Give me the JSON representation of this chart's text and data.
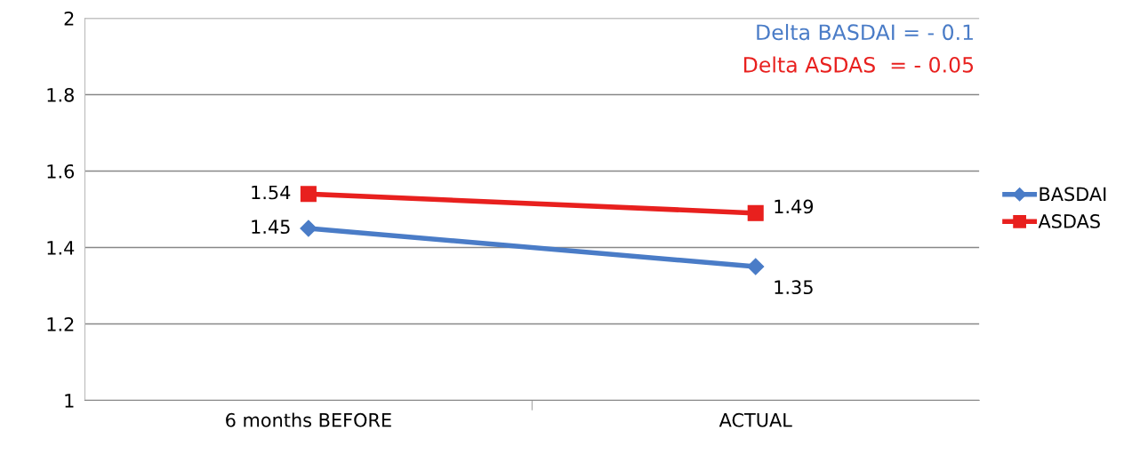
{
  "chart_data": {
    "type": "line",
    "categories": [
      "6 months BEFORE",
      "ACTUAL"
    ],
    "series": [
      {
        "name": "BASDAI",
        "color": "#4a7cc7",
        "values": [
          1.45,
          1.35
        ],
        "marker": "diamond"
      },
      {
        "name": "ASDAS",
        "color": "#e8201e",
        "values": [
          1.54,
          1.49
        ],
        "marker": "square"
      }
    ],
    "ylim": [
      1,
      2
    ],
    "yticks": [
      1,
      1.2,
      1.4,
      1.6,
      1.8,
      2
    ],
    "grid": "y",
    "legend": "right",
    "data_labels": true,
    "line_style": "solid",
    "annotations": [
      "Delta BASDAI = - 0.1",
      "Delta ASDAS  = - 0.05"
    ]
  }
}
